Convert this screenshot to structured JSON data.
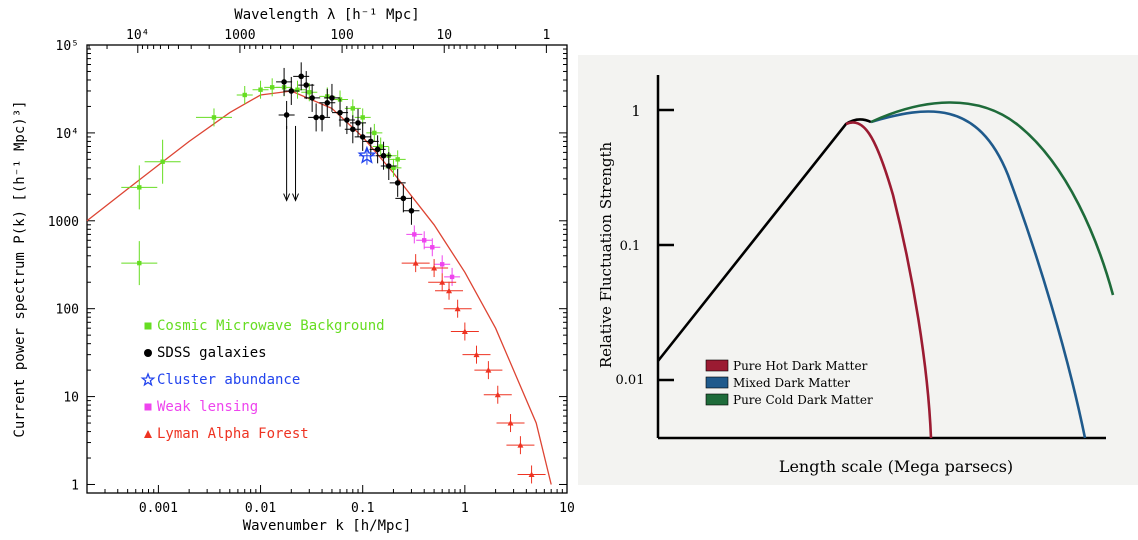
{
  "chart_data": [
    {
      "type": "scatter",
      "top_xlabel": "Wavelength λ [h⁻¹ Mpc]",
      "xlabel": "Wavenumber k [h/Mpc]",
      "ylabel": "Current power spectrum P(k) [(h⁻¹ Mpc)³]",
      "xscale": "log",
      "yscale": "log",
      "xlim": [
        0.0002,
        10
      ],
      "ylim": [
        0.8,
        100000
      ],
      "x_tick_labels": [
        "0.001",
        "0.01",
        "0.1",
        "1",
        "10"
      ],
      "top_tick_labels": [
        "10⁴",
        "1000",
        "100",
        "10",
        "1"
      ],
      "y_tick_labels": [
        "1",
        "10",
        "100",
        "1000",
        "10⁴",
        "10⁵"
      ],
      "colors": {
        "cmb": "#66dd22",
        "sdss": "#000000",
        "cluster": "#2244ee",
        "lensing": "#ee44ee",
        "lyman": "#ee3322",
        "model": "#dd4433"
      },
      "legend": [
        {
          "label": "Cosmic Microwave Background",
          "color": "#66dd22",
          "marker": "square"
        },
        {
          "label": "SDSS galaxies",
          "color": "#000000",
          "marker": "circle"
        },
        {
          "label": "Cluster abundance",
          "color": "#2244ee",
          "marker": "star"
        },
        {
          "label": "Weak lensing",
          "color": "#ee44ee",
          "marker": "square"
        },
        {
          "label": "Lyman Alpha Forest",
          "color": "#ee3322",
          "marker": "triangle"
        }
      ],
      "model_curve": {
        "x": [
          0.0002,
          0.0005,
          0.001,
          0.002,
          0.005,
          0.01,
          0.02,
          0.05,
          0.1,
          0.2,
          0.5,
          1,
          2,
          5,
          7
        ],
        "y": [
          1000,
          2300,
          4300,
          8000,
          17000,
          27000,
          30000,
          19000,
          9000,
          3500,
          900,
          260,
          60,
          5,
          1
        ]
      },
      "series": [
        {
          "name": "Cosmic Microwave Background",
          "points": [
            [
              0.00065,
              330
            ],
            [
              0.00065,
              2400
            ],
            [
              0.0011,
              4700
            ],
            [
              0.0035,
              15000
            ],
            [
              0.007,
              27000
            ],
            [
              0.01,
              31000
            ],
            [
              0.013,
              33000
            ],
            [
              0.017,
              33000
            ],
            [
              0.023,
              31000
            ],
            [
              0.03,
              29000
            ],
            [
              0.045,
              26000
            ],
            [
              0.06,
              24000
            ],
            [
              0.08,
              19000
            ],
            [
              0.1,
              15000
            ],
            [
              0.13,
              10000
            ],
            [
              0.15,
              7000
            ],
            [
              0.18,
              5500
            ],
            [
              0.2,
              4000
            ],
            [
              0.22,
              5000
            ]
          ]
        },
        {
          "name": "SDSS galaxies",
          "points": [
            [
              0.017,
              38000
            ],
            [
              0.018,
              16000
            ],
            [
              0.02,
              30000
            ],
            [
              0.025,
              44000
            ],
            [
              0.028,
              35000
            ],
            [
              0.032,
              25000
            ],
            [
              0.035,
              15000
            ],
            [
              0.04,
              15000
            ],
            [
              0.045,
              22000
            ],
            [
              0.05,
              25000
            ],
            [
              0.06,
              17000
            ],
            [
              0.07,
              14000
            ],
            [
              0.08,
              11000
            ],
            [
              0.09,
              13000
            ],
            [
              0.1,
              9000
            ],
            [
              0.12,
              8000
            ],
            [
              0.14,
              6500
            ],
            [
              0.16,
              5500
            ],
            [
              0.18,
              4200
            ],
            [
              0.22,
              2700
            ],
            [
              0.25,
              1800
            ],
            [
              0.3,
              1300
            ]
          ]
        },
        {
          "name": "Cluster abundance",
          "points": [
            [
              0.11,
              5500
            ]
          ]
        },
        {
          "name": "Weak lensing",
          "points": [
            [
              0.32,
              700
            ],
            [
              0.4,
              600
            ],
            [
              0.48,
              500
            ],
            [
              0.6,
              320
            ],
            [
              0.75,
              230
            ]
          ]
        },
        {
          "name": "Lyman Alpha Forest",
          "points": [
            [
              0.33,
              330
            ],
            [
              0.5,
              290
            ],
            [
              0.6,
              200
            ],
            [
              0.7,
              160
            ],
            [
              0.85,
              100
            ],
            [
              1.0,
              55
            ],
            [
              1.3,
              30
            ],
            [
              1.7,
              20
            ],
            [
              2.1,
              10.5
            ],
            [
              2.8,
              5
            ],
            [
              3.5,
              2.8
            ],
            [
              4.5,
              1.3
            ]
          ]
        }
      ],
      "upper_limit_arrows_x": [
        0.018,
        0.022
      ]
    },
    {
      "type": "line",
      "xlabel": "Length scale (Mega parsecs)",
      "ylabel": "Relative Fluctuation Strength",
      "yscale": "log",
      "y_tick_labels": [
        "1",
        "0.1",
        "0.01"
      ],
      "legend": [
        {
          "label": "Pure Hot Dark Matter",
          "color": "#9b1b32"
        },
        {
          "label": "Mixed Dark Matter",
          "color": "#1f5a8c"
        },
        {
          "label": "Pure Cold Dark Matter",
          "color": "#1e6b3a"
        }
      ],
      "series": [
        {
          "name": "Pure Hot Dark Matter",
          "color": "#9b1b32"
        },
        {
          "name": "Mixed Dark Matter",
          "color": "#1f5a8c"
        },
        {
          "name": "Pure Cold Dark Matter",
          "color": "#1e6b3a"
        }
      ],
      "common_rise_color": "#000000",
      "background": "#f3f3f1"
    }
  ]
}
